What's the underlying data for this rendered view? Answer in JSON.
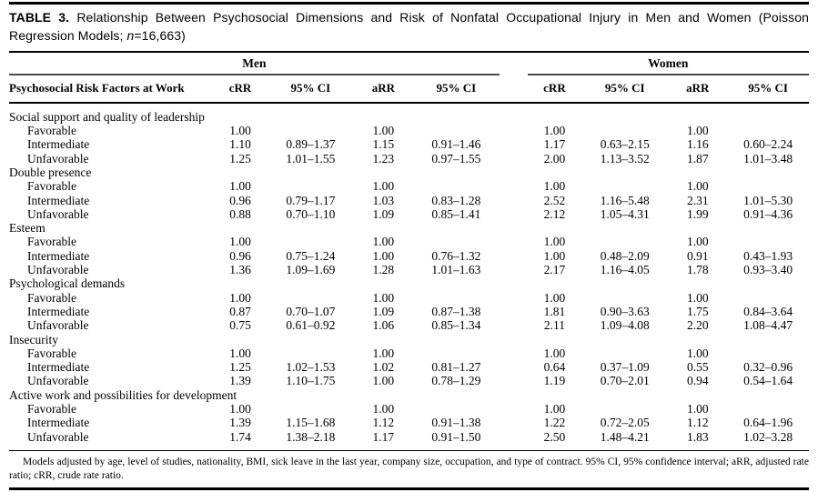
{
  "title": {
    "label": "TABLE 3.",
    "text1": " Relationship Between Psychosocial Dimensions and Risk of Nonfatal Occupational Injury in Men and Women (Poisson Regression Models; ",
    "n_symbol": "n",
    "text2": "=16,663)"
  },
  "table": {
    "stub_header": "Psychosocial Risk Factors at Work",
    "groups": [
      "Men",
      "Women"
    ],
    "sub_headers": [
      "cRR",
      "95% CI",
      "aRR",
      "95% CI"
    ],
    "sections": [
      {
        "name": "Social support and quality of leadership",
        "rows": [
          {
            "label": "Favorable",
            "men": [
              "1.00",
              "",
              "1.00",
              ""
            ],
            "women": [
              "1.00",
              "",
              "1.00",
              ""
            ]
          },
          {
            "label": "Intermediate",
            "men": [
              "1.10",
              "0.89–1.37",
              "1.15",
              "0.91–1.46"
            ],
            "women": [
              "1.17",
              "0.63–2.15",
              "1.16",
              "0.60–2.24"
            ]
          },
          {
            "label": "Unfavorable",
            "men": [
              "1.25",
              "1.01–1.55",
              "1.23",
              "0.97–1.55"
            ],
            "women": [
              "2.00",
              "1.13–3.52",
              "1.87",
              "1.01–3.48"
            ]
          }
        ]
      },
      {
        "name": "Double presence",
        "rows": [
          {
            "label": "Favorable",
            "men": [
              "1.00",
              "",
              "1.00",
              ""
            ],
            "women": [
              "1.00",
              "",
              "1.00",
              ""
            ]
          },
          {
            "label": "Intermediate",
            "men": [
              "0.96",
              "0.79–1.17",
              "1.03",
              "0.83–1.28"
            ],
            "women": [
              "2.52",
              "1.16–5.48",
              "2.31",
              "1.01–5.30"
            ]
          },
          {
            "label": "Unfavorable",
            "men": [
              "0.88",
              "0.70–1.10",
              "1.09",
              "0.85–1.41"
            ],
            "women": [
              "2.12",
              "1.05–4.31",
              "1.99",
              "0.91–4.36"
            ]
          }
        ]
      },
      {
        "name": "Esteem",
        "rows": [
          {
            "label": "Favorable",
            "men": [
              "1.00",
              "",
              "1.00",
              ""
            ],
            "women": [
              "1.00",
              "",
              "1.00",
              ""
            ]
          },
          {
            "label": "Intermediate",
            "men": [
              "0.96",
              "0.75–1.24",
              "1.00",
              "0.76–1.32"
            ],
            "women": [
              "1.00",
              "0.48–2.09",
              "0.91",
              "0.43–1.93"
            ]
          },
          {
            "label": "Unfavorable",
            "men": [
              "1.36",
              "1.09–1.69",
              "1.28",
              "1.01–1.63"
            ],
            "women": [
              "2.17",
              "1.16–4.05",
              "1.78",
              "0.93–3.40"
            ]
          }
        ]
      },
      {
        "name": "Psychological demands",
        "rows": [
          {
            "label": "Favorable",
            "men": [
              "1.00",
              "",
              "1.00",
              ""
            ],
            "women": [
              "1.00",
              "",
              "1.00",
              ""
            ]
          },
          {
            "label": "Intermediate",
            "men": [
              "0.87",
              "0.70–1.07",
              "1.09",
              "0.87–1.38"
            ],
            "women": [
              "1.81",
              "0.90–3.63",
              "1.75",
              "0.84–3.64"
            ]
          },
          {
            "label": "Unfavorable",
            "men": [
              "0.75",
              "0.61–0.92",
              "1.06",
              "0.85–1.34"
            ],
            "women": [
              "2.11",
              "1.09–4.08",
              "2.20",
              "1.08–4.47"
            ]
          }
        ]
      },
      {
        "name": "Insecurity",
        "rows": [
          {
            "label": "Favorable",
            "men": [
              "1.00",
              "",
              "1.00",
              ""
            ],
            "women": [
              "1.00",
              "",
              "1.00",
              ""
            ]
          },
          {
            "label": "Intermediate",
            "men": [
              "1.25",
              "1.02–1.53",
              "1.02",
              "0.81–1.27"
            ],
            "women": [
              "0.64",
              "0.37–1.09",
              "0.55",
              "0.32–0.96"
            ]
          },
          {
            "label": "Unfavorable",
            "men": [
              "1.39",
              "1.10–1.75",
              "1.00",
              "0.78–1.29"
            ],
            "women": [
              "1.19",
              "0.70–2.01",
              "0.94",
              "0.54–1.64"
            ]
          }
        ]
      },
      {
        "name": "Active work and possibilities for development",
        "rows": [
          {
            "label": "Favorable",
            "men": [
              "1.00",
              "",
              "1.00",
              ""
            ],
            "women": [
              "1.00",
              "",
              "1.00",
              ""
            ]
          },
          {
            "label": "Intermediate",
            "men": [
              "1.39",
              "1.15–1.68",
              "1.12",
              "0.91–1.38"
            ],
            "women": [
              "1.22",
              "0.72–2.05",
              "1.12",
              "0.64–1.96"
            ]
          },
          {
            "label": "Unfavorable",
            "men": [
              "1.74",
              "1.38–2.18",
              "1.17",
              "0.91–1.50"
            ],
            "women": [
              "2.50",
              "1.48–4.21",
              "1.83",
              "1.02–3.28"
            ]
          }
        ]
      }
    ]
  },
  "footnote": "Models adjusted by age, level of studies, nationality, BMI, sick leave in the last year, company size, occupation, and type of contract. 95% CI, 95% confidence interval; aRR, adjusted rate ratio; cRR, crude rate ratio."
}
